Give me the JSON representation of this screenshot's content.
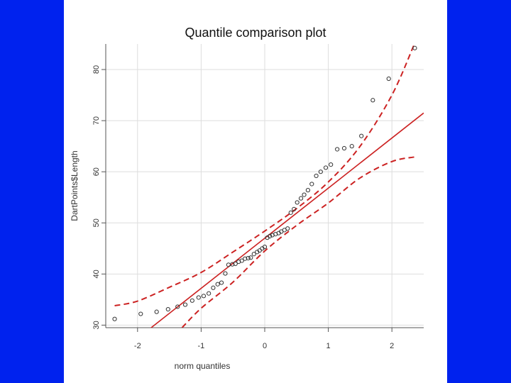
{
  "chart_data": {
    "type": "scatter",
    "title": "Quantile comparison plot",
    "xlabel": "norm quantiles",
    "ylabel": "DartPoints$Length",
    "xlim": [
      -2.5,
      2.5
    ],
    "ylim": [
      29.5,
      85
    ],
    "x_ticks": [
      -2,
      -1,
      0,
      1,
      2
    ],
    "y_ticks": [
      30,
      40,
      50,
      60,
      70,
      80
    ],
    "grid": true,
    "colors": {
      "points": "#333333",
      "fit_line": "#cc2222",
      "envelope": "#cc2222",
      "grid": "#dddddd"
    },
    "points": [
      {
        "x": -2.36,
        "y": 31.2
      },
      {
        "x": -1.95,
        "y": 32.2
      },
      {
        "x": -1.7,
        "y": 32.6
      },
      {
        "x": -1.52,
        "y": 33.1
      },
      {
        "x": -1.37,
        "y": 33.6
      },
      {
        "x": -1.25,
        "y": 34.0
      },
      {
        "x": -1.14,
        "y": 34.8
      },
      {
        "x": -1.04,
        "y": 35.4
      },
      {
        "x": -0.96,
        "y": 35.7
      },
      {
        "x": -0.88,
        "y": 36.2
      },
      {
        "x": -0.81,
        "y": 37.3
      },
      {
        "x": -0.74,
        "y": 38.0
      },
      {
        "x": -0.68,
        "y": 38.3
      },
      {
        "x": -0.62,
        "y": 40.1
      },
      {
        "x": -0.57,
        "y": 41.8
      },
      {
        "x": -0.51,
        "y": 41.9
      },
      {
        "x": -0.46,
        "y": 42.0
      },
      {
        "x": -0.41,
        "y": 42.4
      },
      {
        "x": -0.36,
        "y": 42.6
      },
      {
        "x": -0.31,
        "y": 43.0
      },
      {
        "x": -0.26,
        "y": 43.1
      },
      {
        "x": -0.22,
        "y": 43.2
      },
      {
        "x": -0.17,
        "y": 43.9
      },
      {
        "x": -0.12,
        "y": 44.3
      },
      {
        "x": -0.08,
        "y": 44.6
      },
      {
        "x": -0.04,
        "y": 45.0
      },
      {
        "x": 0.0,
        "y": 45.3
      },
      {
        "x": 0.04,
        "y": 47.1
      },
      {
        "x": 0.08,
        "y": 47.4
      },
      {
        "x": 0.12,
        "y": 47.6
      },
      {
        "x": 0.17,
        "y": 47.8
      },
      {
        "x": 0.22,
        "y": 48.0
      },
      {
        "x": 0.26,
        "y": 48.3
      },
      {
        "x": 0.31,
        "y": 48.6
      },
      {
        "x": 0.36,
        "y": 48.9
      },
      {
        "x": 0.41,
        "y": 52.0
      },
      {
        "x": 0.46,
        "y": 52.7
      },
      {
        "x": 0.51,
        "y": 54.0
      },
      {
        "x": 0.57,
        "y": 54.8
      },
      {
        "x": 0.62,
        "y": 55.5
      },
      {
        "x": 0.68,
        "y": 56.4
      },
      {
        "x": 0.74,
        "y": 57.6
      },
      {
        "x": 0.81,
        "y": 59.2
      },
      {
        "x": 0.88,
        "y": 60.0
      },
      {
        "x": 0.96,
        "y": 60.8
      },
      {
        "x": 1.04,
        "y": 61.4
      },
      {
        "x": 1.14,
        "y": 64.4
      },
      {
        "x": 1.25,
        "y": 64.6
      },
      {
        "x": 1.37,
        "y": 65.0
      },
      {
        "x": 1.52,
        "y": 67.0
      },
      {
        "x": 1.7,
        "y": 74.0
      },
      {
        "x": 1.95,
        "y": 78.2
      },
      {
        "x": 2.36,
        "y": 84.2
      }
    ],
    "fit_line": {
      "intercept": 47.0,
      "slope": 9.8
    },
    "envelope_upper": [
      {
        "x": -2.36,
        "y": 33.8
      },
      {
        "x": -2.0,
        "y": 34.7
      },
      {
        "x": -1.5,
        "y": 37.4
      },
      {
        "x": -1.0,
        "y": 40.3
      },
      {
        "x": -0.5,
        "y": 44.3
      },
      {
        "x": 0.0,
        "y": 48.4
      },
      {
        "x": 0.5,
        "y": 52.8
      },
      {
        "x": 1.0,
        "y": 58.0
      },
      {
        "x": 1.5,
        "y": 65.0
      },
      {
        "x": 2.0,
        "y": 75.0
      },
      {
        "x": 2.36,
        "y": 85.2
      }
    ],
    "envelope_lower": [
      {
        "x": -1.3,
        "y": 29.5
      },
      {
        "x": -1.0,
        "y": 33.3
      },
      {
        "x": -0.5,
        "y": 38.4
      },
      {
        "x": 0.0,
        "y": 44.5
      },
      {
        "x": 0.5,
        "y": 49.5
      },
      {
        "x": 1.0,
        "y": 53.9
      },
      {
        "x": 1.5,
        "y": 58.8
      },
      {
        "x": 2.0,
        "y": 62.0
      },
      {
        "x": 2.36,
        "y": 62.9
      }
    ]
  }
}
